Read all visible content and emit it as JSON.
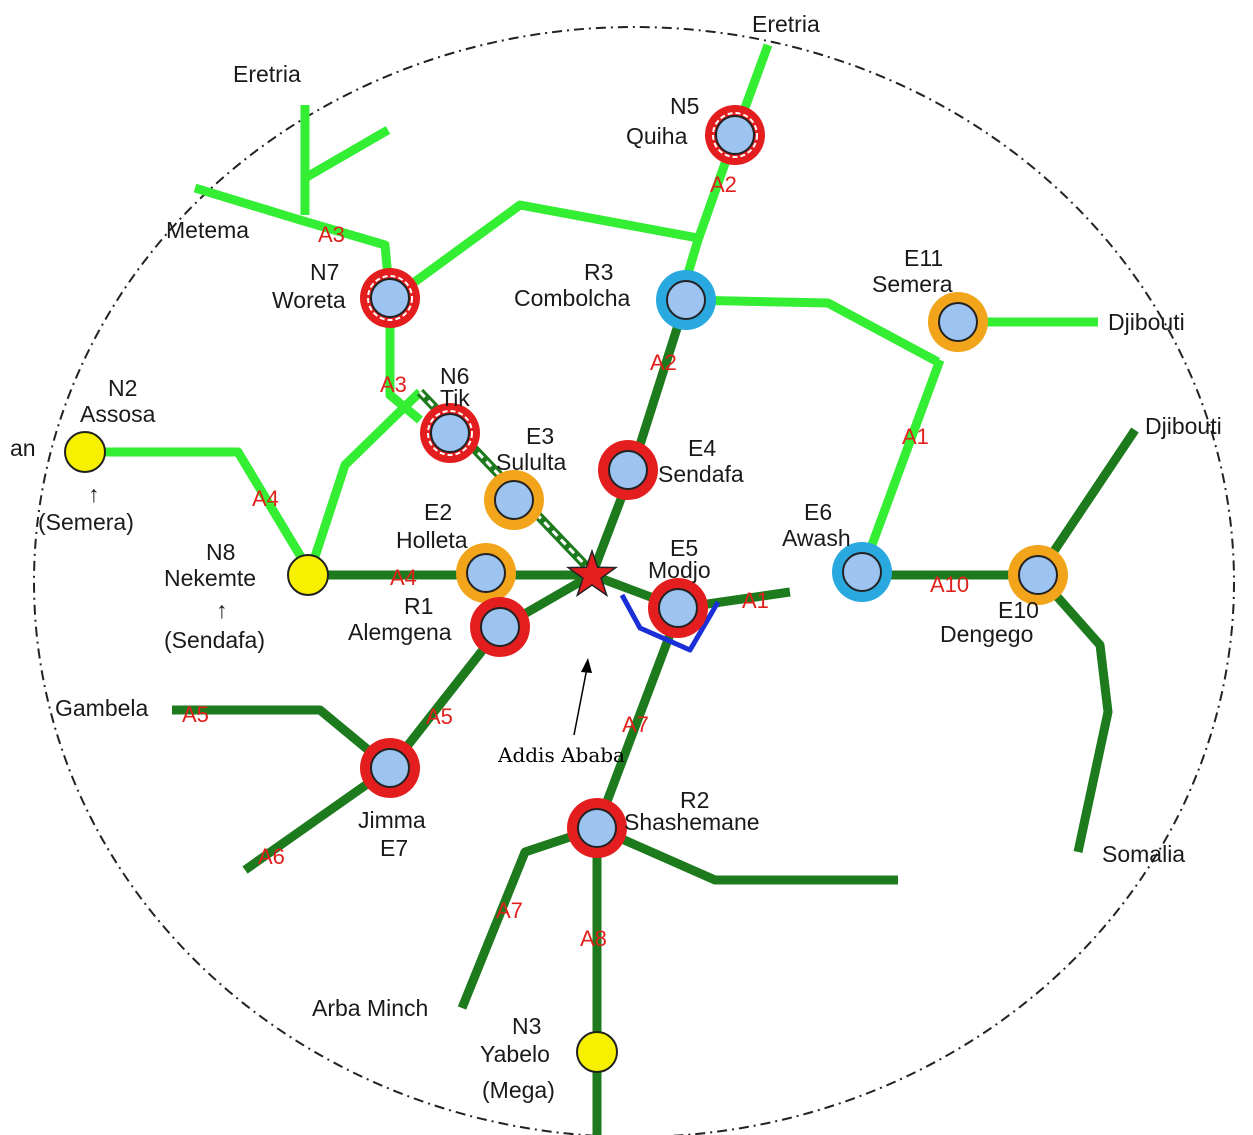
{
  "colors": {
    "light_road": "#33ee33",
    "dark_road": "#1d7a1d",
    "ring_red": "#e41e1e",
    "ring_orange": "#f2a51a",
    "ring_blue": "#29a9e0",
    "node_fill": "#9dc3f0",
    "node_yellow": "#f7f000",
    "capital_star": "#e41e1e",
    "loop": "#1a2fd6"
  },
  "destinations": {
    "eretria_top": "Eretria",
    "eretria_left": "Eretria",
    "metema": "Metema",
    "djibouti_upper": "Djibouti",
    "djibouti_right": "Djibouti",
    "sudan": "an",
    "gambela": "Gambela",
    "somalia": "Somalia",
    "arba_minch": "Arba Minch"
  },
  "nodes": {
    "n5": {
      "code": "N5",
      "name": "Quiha"
    },
    "n7": {
      "code": "N7",
      "name": "Woreta"
    },
    "r3": {
      "code": "R3",
      "name": "Combolcha"
    },
    "e11": {
      "code": "E11",
      "name": "Semera"
    },
    "n2": {
      "code": "N2",
      "name": "Assosa",
      "note_arrow": "↑",
      "note": "(Semera)"
    },
    "n6": {
      "code": "N6",
      "name": "Tik"
    },
    "e3": {
      "code": "E3",
      "name": "Sululta"
    },
    "e4": {
      "code": "E4",
      "name": "Sendafa"
    },
    "e6": {
      "code": "E6",
      "name": "Awash"
    },
    "e2": {
      "code": "E2",
      "name": "Holleta"
    },
    "e5": {
      "code": "E5",
      "name": "Modjo"
    },
    "n8": {
      "code": "N8",
      "name": "Nekemte",
      "note_arrow": "↑",
      "note": "(Sendafa)"
    },
    "r1": {
      "code": "R1",
      "name": "Alemgena"
    },
    "e10": {
      "code": "E10",
      "name": "Dengego"
    },
    "e7": {
      "code": "E7",
      "name": "Jimma"
    },
    "r2": {
      "code": "R2",
      "name": "Shashemane"
    },
    "n3": {
      "code": "N3",
      "name": "Yabelo",
      "note": "(Mega)"
    }
  },
  "routes": {
    "a2_upper": "A2",
    "a2_lower": "A2",
    "a3_upper": "A3",
    "a3_lower": "A3",
    "a1_upper": "A1",
    "a1_lower": "A1",
    "a4_left": "A4",
    "a4_center": "A4",
    "a10": "A10",
    "a5_left": "A5",
    "a5_center": "A5",
    "a7_upper": "A7",
    "a7_lower": "A7",
    "a6": "A6",
    "a8": "A8"
  },
  "capital": {
    "label": "Addis Ababa"
  }
}
